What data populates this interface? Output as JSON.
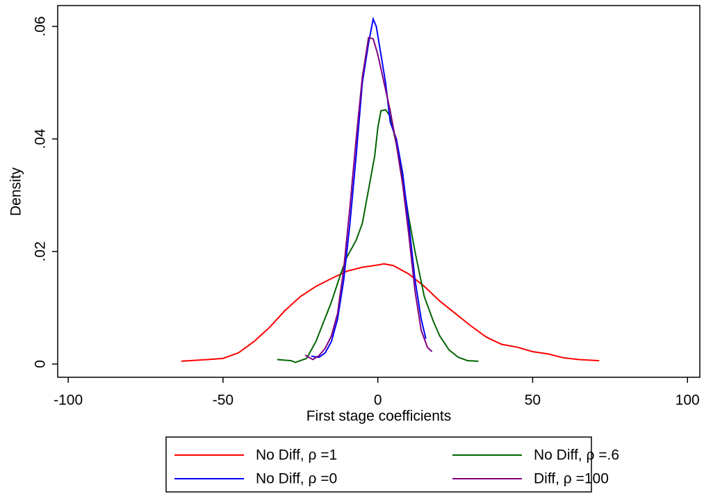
{
  "chart_data": {
    "type": "line",
    "xlabel": "First stage coefficients",
    "ylabel": "Density",
    "xlim": [
      -103.4,
      104
    ],
    "ylim": [
      -0.00235,
      0.0637
    ],
    "xticks": [
      -100,
      -50,
      0,
      50,
      100
    ],
    "yticks": [
      0,
      {
        "value": 0.02,
        "label": ".02"
      },
      {
        "value": 0.04,
        "label": ".04"
      },
      {
        "value": 0.06,
        "label": ".06"
      }
    ],
    "legend": "bottom",
    "series": [
      {
        "name": "No Diff, ρ =1",
        "color": "#ff0000",
        "x": [
          -63.5,
          -55,
          -50,
          -45,
          -40,
          -35,
          -30,
          -25,
          -20,
          -15,
          -10,
          -5,
          0,
          2,
          5,
          10,
          15,
          20,
          25,
          30,
          35,
          40,
          45,
          50,
          55,
          60,
          65,
          71.5
        ],
        "values": [
          0.0005,
          0.0008,
          0.001,
          0.002,
          0.004,
          0.0065,
          0.0095,
          0.012,
          0.0138,
          0.0152,
          0.0165,
          0.0172,
          0.0176,
          0.0178,
          0.0175,
          0.016,
          0.0138,
          0.0112,
          0.009,
          0.0068,
          0.0048,
          0.0035,
          0.003,
          0.0022,
          0.0018,
          0.0011,
          0.0008,
          0.0006
        ]
      },
      {
        "name": "No Diff, ρ =.6",
        "color": "#006400",
        "x": [
          -32.5,
          -28,
          -26.6,
          -23,
          -20,
          -15,
          -12,
          -10,
          -7,
          -5,
          -3,
          -1,
          0,
          1,
          2.5,
          4,
          6,
          8,
          10,
          12,
          15,
          18,
          20,
          23,
          26,
          29,
          32.5
        ],
        "values": [
          0.0008,
          0.0006,
          0.0003,
          0.001,
          0.004,
          0.011,
          0.016,
          0.019,
          0.022,
          0.025,
          0.031,
          0.037,
          0.042,
          0.045,
          0.0452,
          0.044,
          0.039,
          0.033,
          0.026,
          0.02,
          0.012,
          0.0075,
          0.005,
          0.0025,
          0.0012,
          0.0006,
          0.0005
        ]
      },
      {
        "name": "No Diff, ρ =0",
        "color": "#0000ff",
        "x": [
          -21.5,
          -19,
          -17,
          -15,
          -13,
          -11,
          -9,
          -7,
          -5,
          -3,
          -1.5,
          -0.5,
          1,
          2.5,
          4,
          6,
          8,
          10,
          12,
          14,
          15.5
        ],
        "values": [
          0.0014,
          0.0012,
          0.002,
          0.004,
          0.008,
          0.015,
          0.025,
          0.037,
          0.05,
          0.057,
          0.0613,
          0.06,
          0.055,
          0.05,
          0.043,
          0.04,
          0.034,
          0.025,
          0.015,
          0.008,
          0.0045
        ]
      },
      {
        "name": "Diff, ρ =100",
        "color": "#800080",
        "x": [
          -23.5,
          -21,
          -19,
          -17,
          -15,
          -13,
          -11,
          -9,
          -7,
          -5,
          -3,
          -1.5,
          0,
          2,
          4,
          6,
          8,
          10,
          12,
          14,
          16,
          17.5
        ],
        "values": [
          0.0016,
          0.0008,
          0.0015,
          0.0028,
          0.005,
          0.009,
          0.017,
          0.028,
          0.04,
          0.051,
          0.058,
          0.0578,
          0.055,
          0.05,
          0.045,
          0.039,
          0.032,
          0.023,
          0.013,
          0.006,
          0.003,
          0.0022
        ]
      }
    ]
  }
}
